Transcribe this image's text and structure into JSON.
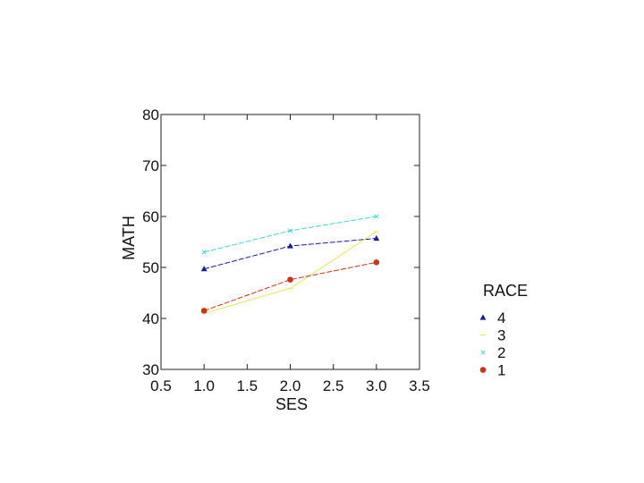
{
  "chart_data": {
    "type": "line",
    "xlabel": "SES",
    "ylabel": "MATH",
    "xlim": [
      0.5,
      3.5
    ],
    "ylim": [
      30,
      80
    ],
    "xticks": [
      "0.5",
      "1.0",
      "1.5",
      "2.0",
      "2.5",
      "3.0",
      "3.5"
    ],
    "yticks": [
      "30",
      "40",
      "50",
      "60",
      "70",
      "80"
    ],
    "grid": false,
    "legend": {
      "title": "RACE",
      "placement": "right"
    },
    "x": [
      1.0,
      2.0,
      3.0
    ],
    "series": [
      {
        "name": "4",
        "values": [
          49.7,
          54.2,
          55.7
        ],
        "color": "#1a1aa0",
        "marker": "triangle"
      },
      {
        "name": "3",
        "values": [
          41.0,
          45.9,
          57.0
        ],
        "color": "#e6e65a",
        "marker": "line"
      },
      {
        "name": "2",
        "values": [
          53.0,
          57.2,
          60.0
        ],
        "color": "#3dd6e0",
        "marker": "x"
      },
      {
        "name": "1",
        "values": [
          41.5,
          47.6,
          51.0
        ],
        "color": "#cc3311",
        "marker": "circle"
      }
    ]
  }
}
